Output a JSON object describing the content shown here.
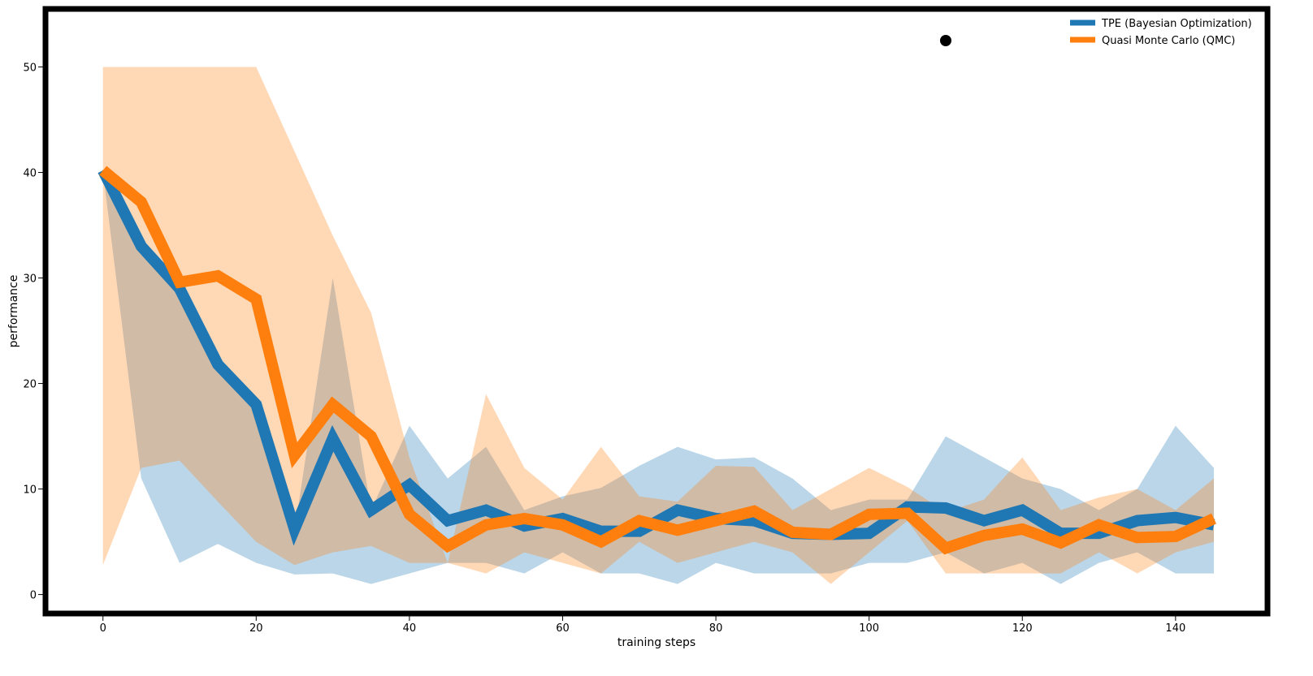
{
  "chart_data": {
    "type": "line",
    "xlabel": "training steps",
    "ylabel": "performance",
    "xlim": [
      -7.5,
      152
    ],
    "ylim": [
      -1.8,
      55.5
    ],
    "xticks": [
      0,
      20,
      40,
      60,
      80,
      100,
      120,
      140
    ],
    "yticks": [
      0,
      10,
      20,
      30,
      40,
      50
    ],
    "grid": false,
    "legend_position": "top-right",
    "x": [
      0,
      5,
      10,
      15,
      20,
      25,
      30,
      35,
      40,
      45,
      50,
      55,
      60,
      65,
      70,
      75,
      80,
      85,
      90,
      95,
      100,
      105,
      110,
      115,
      120,
      125,
      130,
      135,
      140,
      145
    ],
    "series": [
      {
        "name": "TPE (Bayesian Optimization)",
        "color": "#1f77b4",
        "values": [
          40.2,
          33.0,
          29.0,
          21.8,
          18.0,
          6.2,
          14.8,
          8.0,
          10.4,
          7.0,
          8.0,
          6.5,
          7.2,
          6.0,
          6.0,
          8.0,
          7.2,
          7.0,
          5.8,
          5.7,
          5.8,
          8.3,
          8.2,
          7.0,
          8.0,
          5.8,
          5.8,
          7.0,
          7.3,
          6.6
        ],
        "band_upper": [
          40.0,
          33.0,
          29.0,
          22.0,
          18.0,
          6.0,
          30.0,
          8.0,
          16.0,
          11.0,
          14.0,
          8.0,
          9.3,
          10.1,
          12.2,
          14.0,
          12.8,
          13.0,
          11.0,
          8.0,
          9.0,
          9.0,
          15.0,
          13.0,
          11.0,
          10.0,
          8.0,
          10.0,
          16.0,
          12.0
        ],
        "band_lower": [
          40.0,
          11.0,
          3.0,
          4.8,
          3.0,
          1.9,
          2.0,
          1.0,
          2.0,
          3.0,
          3.0,
          2.0,
          4.0,
          2.0,
          2.0,
          1.0,
          3.0,
          2.0,
          2.0,
          2.0,
          3.0,
          3.0,
          4.0,
          2.0,
          3.0,
          1.0,
          3.0,
          4.0,
          2.0,
          2.0
        ]
      },
      {
        "name": "Quasi Monte Carlo (QMC)",
        "color": "#ff7f0e",
        "values": [
          40.2,
          37.2,
          29.6,
          30.2,
          28.0,
          13.2,
          18.0,
          15.0,
          7.6,
          4.6,
          6.6,
          7.2,
          6.6,
          5.0,
          7.0,
          6.1,
          7.0,
          7.9,
          5.9,
          5.7,
          7.6,
          7.7,
          4.4,
          5.6,
          6.2,
          4.9,
          6.6,
          5.4,
          5.5,
          7.2
        ],
        "band_upper": [
          50.0,
          50.0,
          50.0,
          50.0,
          50.0,
          42.0,
          34.0,
          26.7,
          13.0,
          3.0,
          19.0,
          12.0,
          9.0,
          14.0,
          9.3,
          8.8,
          12.2,
          12.1,
          8.0,
          10.0,
          12.0,
          10.2,
          7.8,
          9.0,
          13.0,
          8.0,
          9.2,
          10.0,
          8.0,
          11.0
        ],
        "band_lower": [
          2.8,
          12.0,
          12.7,
          8.8,
          5.0,
          2.8,
          4.0,
          4.6,
          3.0,
          3.0,
          2.0,
          4.0,
          3.0,
          2.0,
          5.0,
          3.0,
          4.0,
          5.0,
          4.0,
          1.0,
          4.0,
          7.0,
          2.0,
          2.0,
          2.0,
          2.0,
          4.0,
          2.0,
          4.0,
          5.0
        ]
      }
    ],
    "annotations": [
      {
        "type": "marker",
        "shape": "circle",
        "color": "#000000",
        "x": 110,
        "y": 52.5
      }
    ]
  }
}
